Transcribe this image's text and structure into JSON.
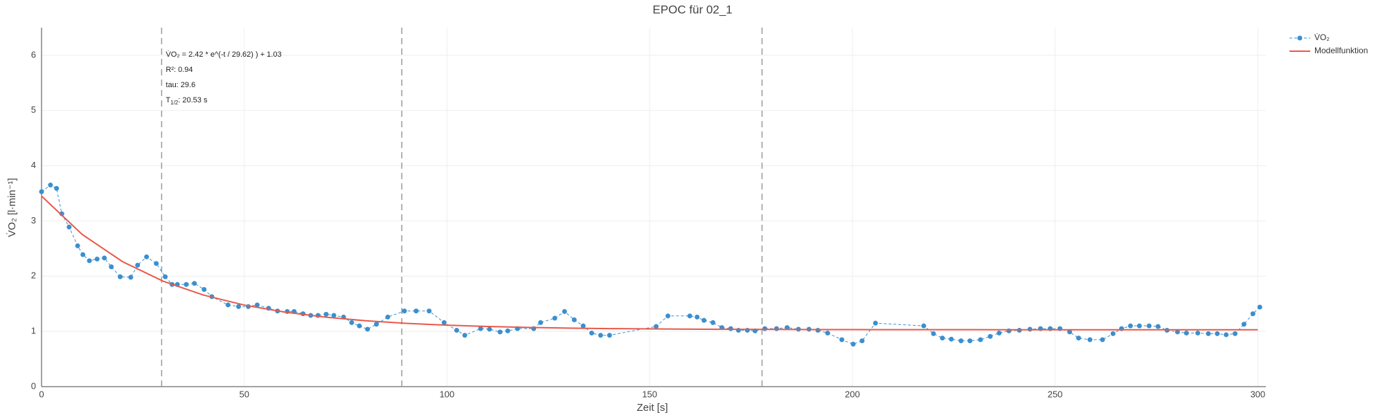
{
  "chart_data": {
    "type": "line",
    "title": "EPOC für 02_1",
    "xlabel": "Zeit [s]",
    "ylabel": "V̇O₂ [l·min⁻¹]",
    "xlim": [
      0,
      302
    ],
    "ylim": [
      0,
      6.5
    ],
    "xticks": [
      0,
      50,
      100,
      150,
      200,
      250,
      300
    ],
    "yticks": [
      0,
      1,
      2,
      3,
      4,
      5,
      6
    ],
    "grid": true,
    "legend": "top-right",
    "vlines": [
      29.62,
      88.86,
      177.72
    ],
    "annotations": [
      "V̇O₂ = 2.42 * e^(-t / 29.62) ) + 1.03",
      "R²: 0.94",
      "tau: 29.6"
    ],
    "half_life": {
      "text": "T",
      "sub": "1/2",
      "rest": ": 20.53 s"
    },
    "series": [
      {
        "name": "V̇O₂",
        "color": "#3a8fcf",
        "style": "dashed-markers",
        "x": [
          0,
          2.2,
          3.7,
          5,
          6.8,
          8.9,
          10.2,
          11.8,
          13.7,
          15.5,
          17.2,
          19.4,
          22,
          23.7,
          25.9,
          28.3,
          30.5,
          32.2,
          33.5,
          35.7,
          37.7,
          40.1,
          42,
          46,
          48.6,
          51,
          53.2,
          56,
          58.2,
          60.6,
          62.3,
          64.5,
          66.4,
          68.2,
          70.2,
          72.1,
          74.5,
          76.5,
          78.4,
          80.4,
          82.6,
          85.4,
          89.5,
          92.4,
          95.6,
          99.3,
          102.4,
          104.4,
          108.3,
          110.5,
          113.1,
          115,
          117.4,
          121.4,
          123.1,
          126.6,
          129,
          131.4,
          133.6,
          135.7,
          137.9,
          140.1,
          151.6,
          154.5,
          159.9,
          161.7,
          163.4,
          165.6,
          167.8,
          170,
          171.9,
          174.1,
          176,
          178.4,
          181.3,
          183.9,
          186.7,
          189.3,
          191.5,
          193.9,
          197.4,
          200.2,
          202.4,
          205.7,
          217.6,
          220,
          222.2,
          224.4,
          226.8,
          229,
          231.6,
          234,
          236.2,
          238.6,
          241.2,
          243.8,
          246.4,
          248.8,
          251.2,
          253.6,
          255.8,
          258.6,
          261.7,
          264.3,
          266.4,
          268.6,
          270.8,
          273.2,
          275.4,
          277.6,
          280.2,
          282.4,
          285.2,
          287.8,
          290,
          292.2,
          294.4,
          296.6,
          298.8,
          300.5
        ],
        "values": [
          3.53,
          3.65,
          3.59,
          3.13,
          2.89,
          2.55,
          2.39,
          2.28,
          2.31,
          2.33,
          2.17,
          1.99,
          1.98,
          2.2,
          2.35,
          2.23,
          1.99,
          1.85,
          1.85,
          1.85,
          1.87,
          1.76,
          1.63,
          1.48,
          1.45,
          1.45,
          1.48,
          1.42,
          1.37,
          1.36,
          1.36,
          1.32,
          1.29,
          1.29,
          1.31,
          1.29,
          1.26,
          1.16,
          1.1,
          1.04,
          1.13,
          1.26,
          1.37,
          1.37,
          1.37,
          1.16,
          1.02,
          0.93,
          1.05,
          1.04,
          0.99,
          1.01,
          1.05,
          1.05,
          1.16,
          1.24,
          1.36,
          1.21,
          1.1,
          0.97,
          0.93,
          0.93,
          1.09,
          1.28,
          1.28,
          1.26,
          1.2,
          1.16,
          1.07,
          1.05,
          1.02,
          1.02,
          1.01,
          1.05,
          1.05,
          1.07,
          1.04,
          1.04,
          1.02,
          0.97,
          0.85,
          0.77,
          0.83,
          1.15,
          1.1,
          0.96,
          0.88,
          0.86,
          0.83,
          0.83,
          0.85,
          0.91,
          0.97,
          1.01,
          1.02,
          1.04,
          1.05,
          1.05,
          1.05,
          0.99,
          0.88,
          0.85,
          0.85,
          0.96,
          1.05,
          1.1,
          1.1,
          1.1,
          1.09,
          1.02,
          0.99,
          0.97,
          0.97,
          0.96,
          0.96,
          0.94,
          0.96,
          1.13,
          1.32,
          1.44
        ]
      },
      {
        "name": "Modellfunktion",
        "color": "#e8584a",
        "style": "solid",
        "x": [
          0,
          10,
          20,
          30,
          40,
          50,
          60,
          70,
          80,
          90,
          100,
          110,
          120,
          130,
          140,
          150,
          160,
          170,
          180,
          190,
          200,
          210,
          220,
          230,
          240,
          250,
          260,
          270,
          280,
          290,
          300
        ],
        "values": [
          3.45,
          2.757,
          2.262,
          1.909,
          1.657,
          1.477,
          1.349,
          1.258,
          1.193,
          1.146,
          1.113,
          1.089,
          1.072,
          1.06,
          1.051,
          1.045,
          1.041,
          1.038,
          1.036,
          1.034,
          1.033,
          1.032,
          1.031,
          1.031,
          1.03,
          1.03,
          1.03,
          1.03,
          1.03,
          1.03,
          1.03
        ]
      }
    ]
  }
}
